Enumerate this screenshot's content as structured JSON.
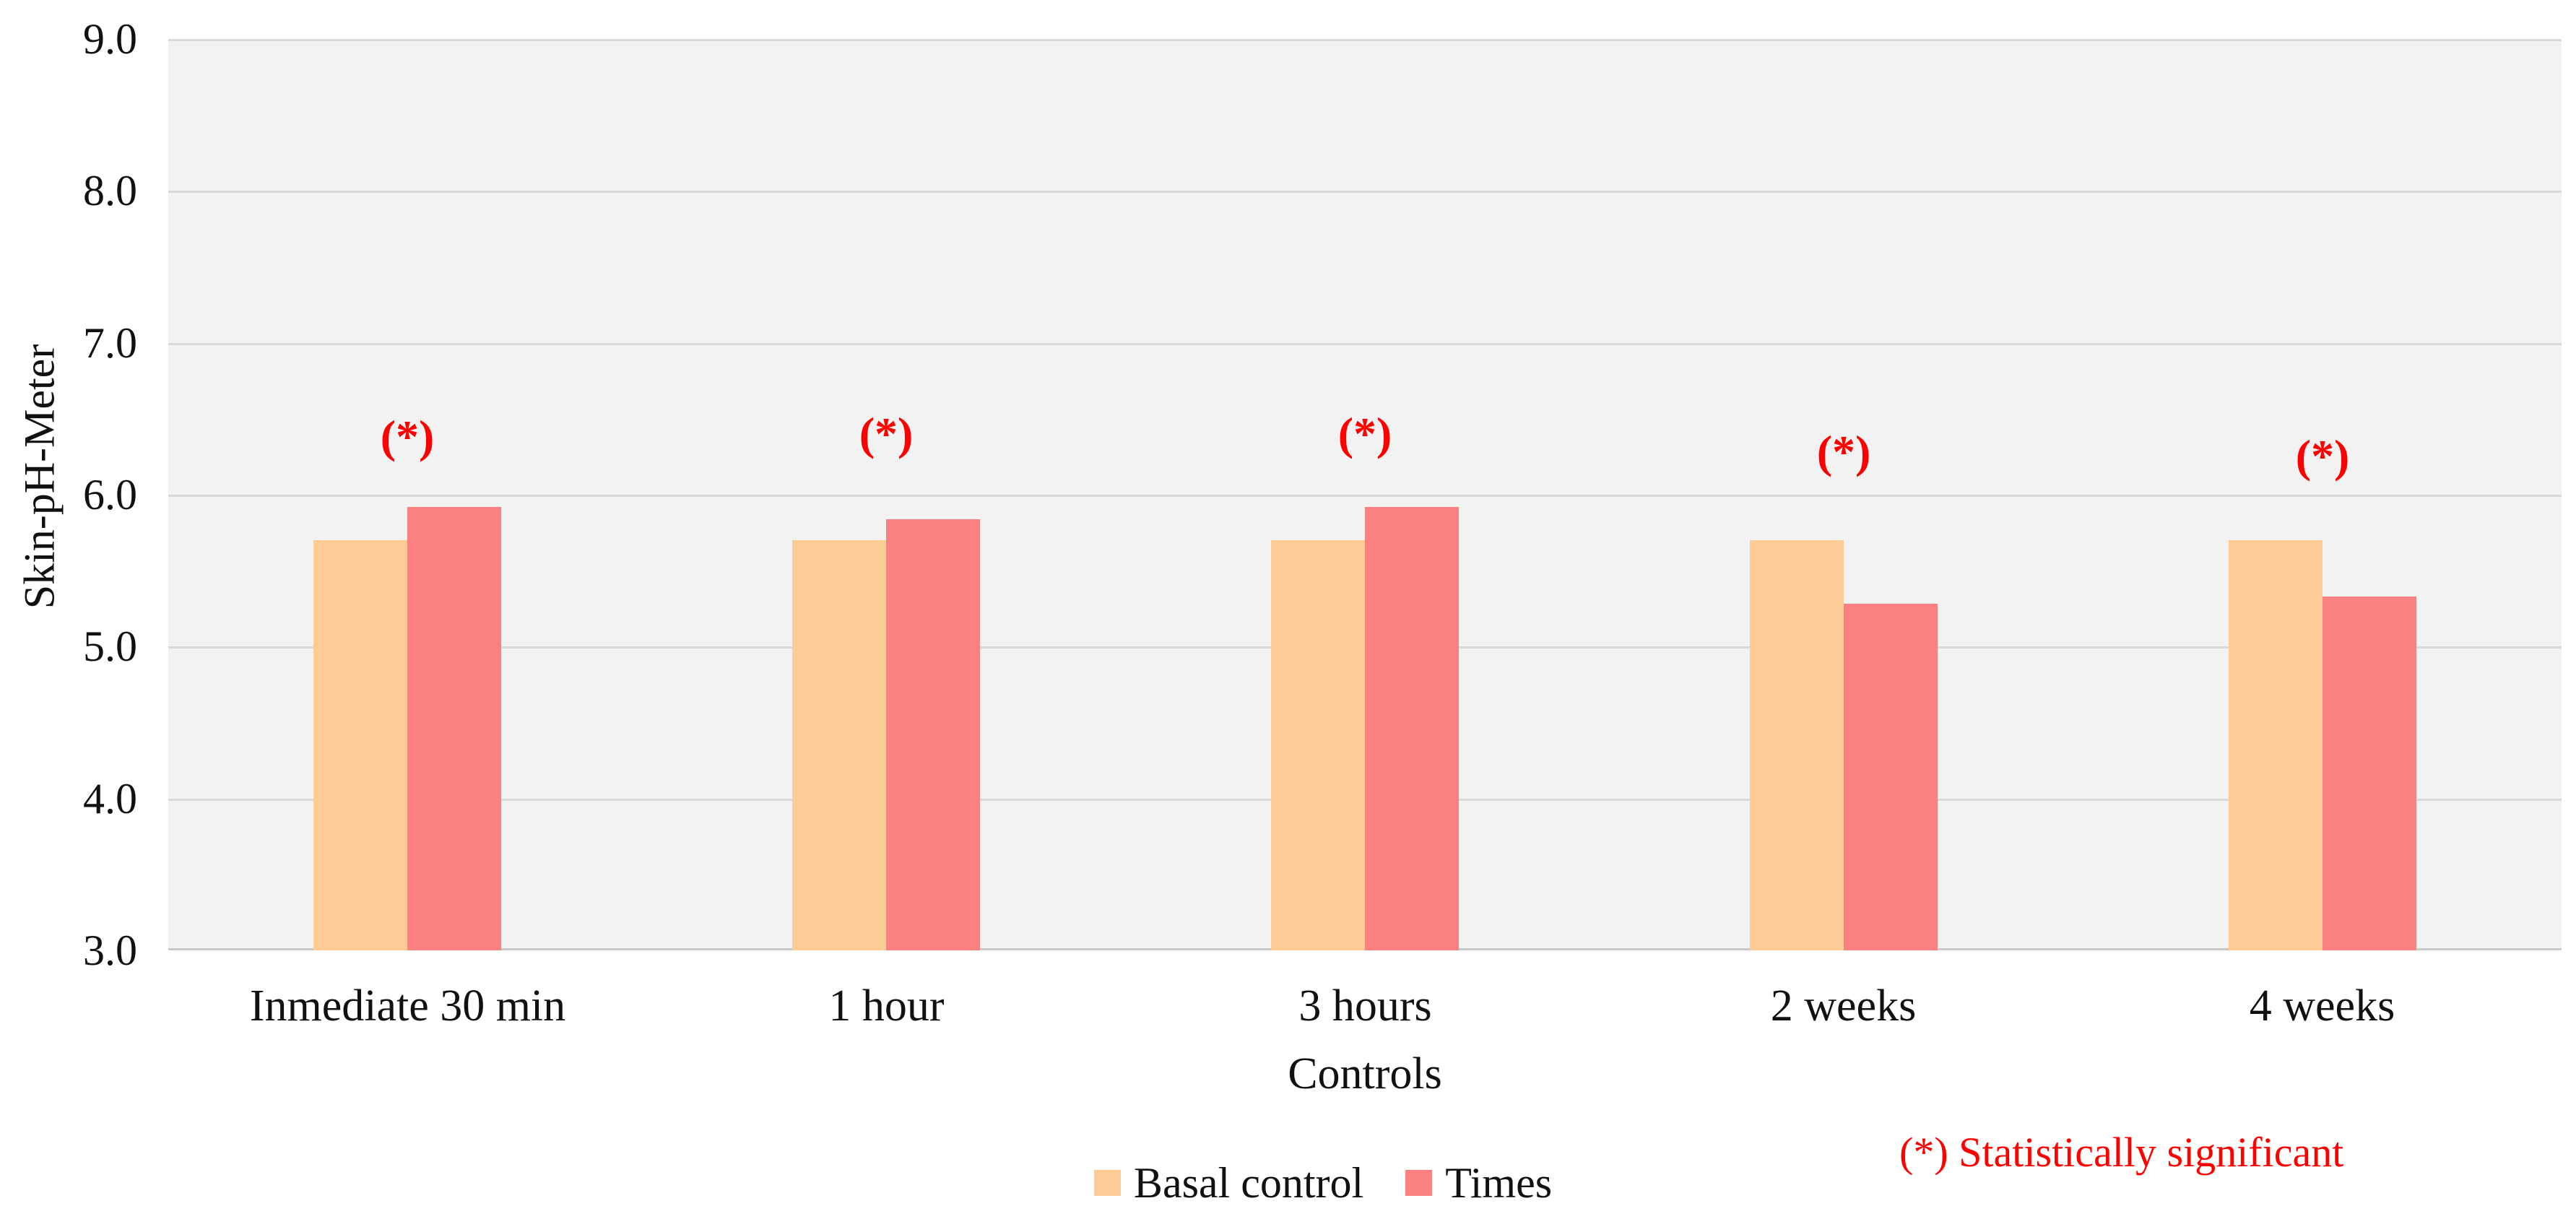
{
  "chart_data": {
    "type": "bar",
    "title": "",
    "xlabel": "Controls",
    "ylabel": "Skin-pH-Meter",
    "categories": [
      "Inmediate 30 min",
      "1 hour",
      "3 hours",
      "2 weeks",
      "4 weeks"
    ],
    "series": [
      {
        "name": "Basal control",
        "color": "#FDCB95",
        "values": [
          5.7,
          5.7,
          5.7,
          5.7,
          5.7
        ]
      },
      {
        "name": "Times",
        "color": "#FB8080",
        "values": [
          5.92,
          5.84,
          5.92,
          5.28,
          5.33
        ]
      }
    ],
    "ylim": [
      3.0,
      9.0
    ],
    "ytick_step": 1.0,
    "yticks": [
      "9.0",
      "8.0",
      "7.0",
      "6.0",
      "5.0",
      "4.0",
      "3.0"
    ],
    "grid": true,
    "legend_position": "bottom-center",
    "plot_bg_color": "#F2F2F2",
    "gridline_color": "#D9D9D9",
    "axisline_color": "#C9C9C9",
    "annotations": {
      "marker": "(*)",
      "marker_color": "#FF0000",
      "marker_y_per_group": [
        6.38,
        6.4,
        6.4,
        6.28,
        6.25
      ],
      "note": "(*) Statistically significant",
      "note_color": "#FF0000"
    }
  }
}
